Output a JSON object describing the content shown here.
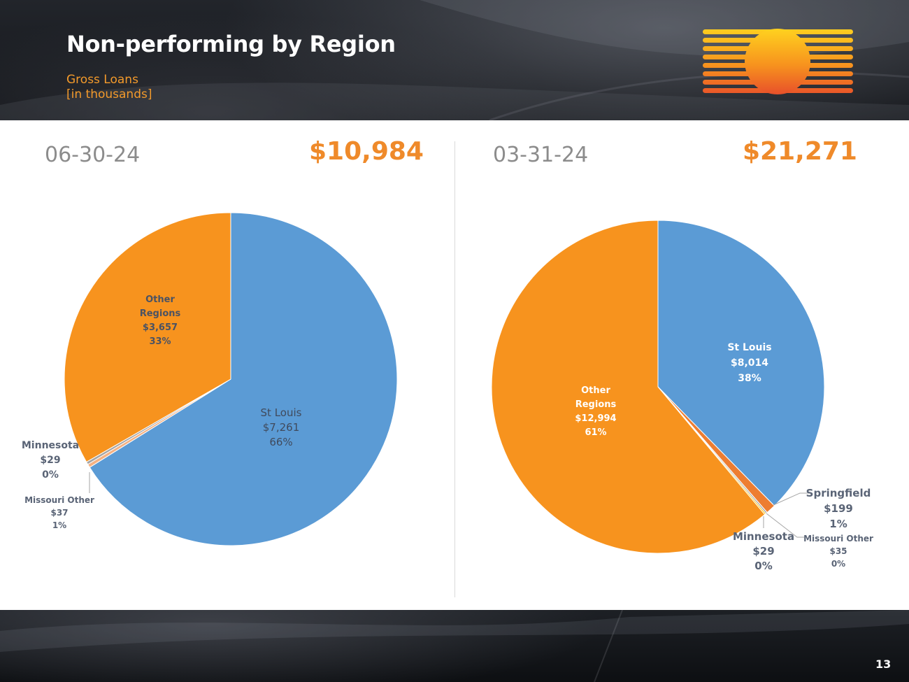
{
  "header": {
    "title": "Non-performing by Region",
    "subtitle_line1": "Gross Loans",
    "subtitle_line2": "[in thousands]"
  },
  "page_number": "13",
  "colors": {
    "blue": "#5b9bd5",
    "orange": "#f7931e",
    "dark_orange": "#ed7d31",
    "light_orange": "#f4b183",
    "gray": "#a5a5a5",
    "total": "#ef8a2a"
  },
  "chart_data": [
    {
      "type": "pie",
      "title": "06-30-24",
      "total_label": "$10,984",
      "slices": [
        {
          "name": "St Louis",
          "value_label": "$7,261",
          "pct_label": "66%",
          "value": 7261,
          "color": "#5b9bd5",
          "label_style": "inside-normal"
        },
        {
          "name": "Missouri Other",
          "value_label": "$37",
          "pct_label": "1%",
          "value": 37,
          "color": "#f4b183",
          "label_style": "outside-small"
        },
        {
          "name": "Minnesota",
          "value_label": "$29",
          "pct_label": "0%",
          "value": 29,
          "color": "#a5a5a5",
          "label_style": "outside"
        },
        {
          "name": "Other Regions",
          "value_label": "$3,657",
          "pct_label": "33%",
          "value": 3657,
          "color": "#f7931e",
          "label_style": "inside-bold"
        }
      ]
    },
    {
      "type": "pie",
      "title": "03-31-24",
      "total_label": "$21,271",
      "slices": [
        {
          "name": "St Louis",
          "value_label": "$8,014",
          "pct_label": "38%",
          "value": 8014,
          "color": "#5b9bd5",
          "label_style": "inside-bold"
        },
        {
          "name": "Springfield",
          "value_label": "$199",
          "pct_label": "1%",
          "value": 199,
          "color": "#ed7d31",
          "label_style": "outside"
        },
        {
          "name": "Missouri Other",
          "value_label": "$35",
          "pct_label": "0%",
          "value": 35,
          "color": "#a5a5a5",
          "label_style": "outside-small"
        },
        {
          "name": "Minnesota",
          "value_label": "$29",
          "pct_label": "0%",
          "value": 29,
          "color": "#ffc000",
          "label_style": "outside"
        },
        {
          "name": "Other Regions",
          "value_label": "$12,994",
          "pct_label": "61%",
          "value": 12994,
          "color": "#f7931e",
          "label_style": "inside-bold"
        }
      ]
    }
  ]
}
